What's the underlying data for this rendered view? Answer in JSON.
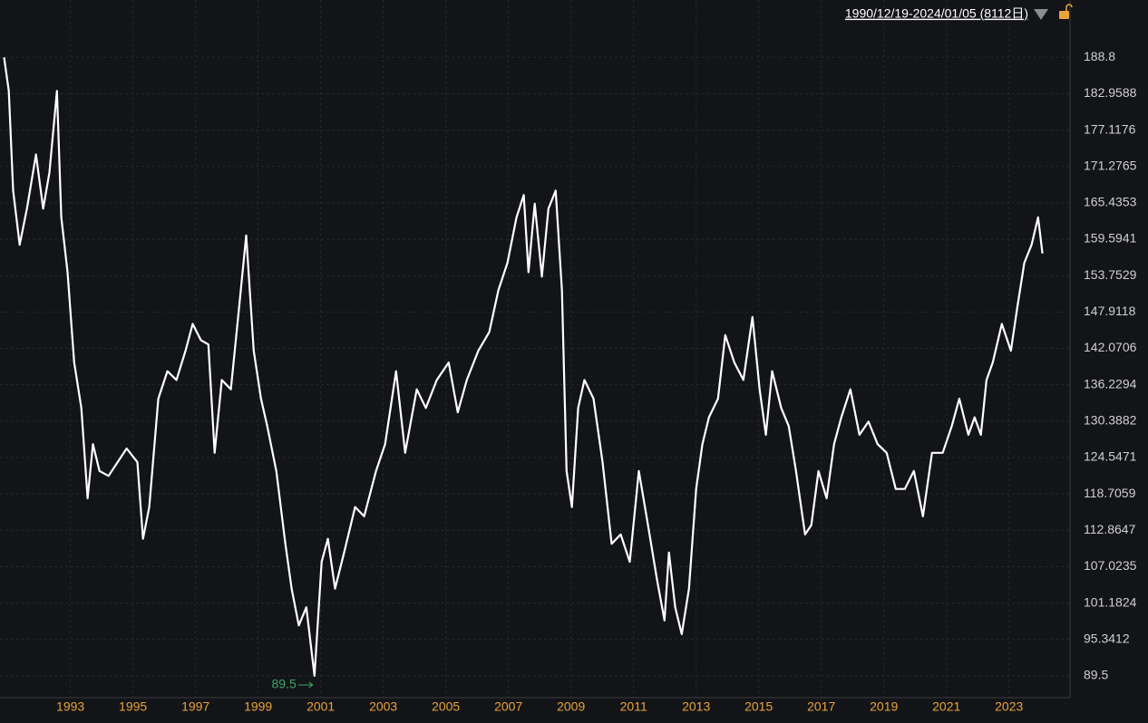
{
  "chart_data": {
    "type": "line",
    "range_label": "1990/12/19-2024/01/05 (8112日)",
    "annotations": [
      "89.5"
    ],
    "color": "#ffffff",
    "grid": true,
    "x": [
      1990.88,
      1991.03,
      1991.17,
      1991.38,
      1991.61,
      1991.9,
      1992.13,
      1992.33,
      1992.57,
      1992.71,
      1992.91,
      1993.12,
      1993.35,
      1993.55,
      1993.72,
      1993.93,
      1994.22,
      1994.51,
      1994.8,
      1995.14,
      1995.32,
      1995.52,
      1995.81,
      1996.1,
      1996.39,
      1996.68,
      1996.91,
      1997.17,
      1997.41,
      1997.61,
      1997.84,
      1998.13,
      1998.42,
      1998.62,
      1998.86,
      1999.09,
      1999.29,
      1999.58,
      1999.87,
      2000.07,
      2000.3,
      2000.54,
      2000.8,
      2001.03,
      2001.23,
      2001.46,
      2001.75,
      2002.1,
      2002.39,
      2002.77,
      2003.06,
      2003.41,
      2003.7,
      2004.07,
      2004.36,
      2004.71,
      2005.09,
      2005.38,
      2005.67,
      2006.04,
      2006.39,
      2006.68,
      2006.97,
      2007.26,
      2007.49,
      2007.64,
      2007.84,
      2008.07,
      2008.28,
      2008.51,
      2008.71,
      2008.86,
      2009.03,
      2009.23,
      2009.43,
      2009.72,
      2010.01,
      2010.3,
      2010.59,
      2010.88,
      2011.17,
      2011.46,
      2011.75,
      2011.99,
      2012.13,
      2012.33,
      2012.54,
      2012.77,
      2013.0,
      2013.2,
      2013.41,
      2013.7,
      2013.93,
      2014.22,
      2014.51,
      2014.8,
      2015.03,
      2015.23,
      2015.43,
      2015.72,
      2015.96,
      2016.19,
      2016.48,
      2016.68,
      2016.91,
      2017.17,
      2017.41,
      2017.64,
      2017.93,
      2018.22,
      2018.51,
      2018.8,
      2019.09,
      2019.38,
      2019.67,
      2019.96,
      2020.25,
      2020.54,
      2020.88,
      2021.17,
      2021.41,
      2021.7,
      2021.9,
      2022.1,
      2022.28,
      2022.48,
      2022.77,
      2023.06,
      2023.26,
      2023.49,
      2023.72,
      2023.93,
      2024.07
    ],
    "values": [
      188.8,
      183.4,
      167.4,
      158.7,
      164.5,
      173.2,
      164.5,
      170.3,
      183.4,
      163.1,
      154.3,
      139.8,
      132.5,
      118.0,
      126.7,
      122.4,
      121.6,
      123.8,
      126.0,
      123.8,
      111.5,
      116.6,
      134.0,
      138.4,
      137.0,
      141.7,
      146.0,
      143.4,
      142.7,
      125.3,
      137.0,
      135.5,
      150.0,
      160.2,
      141.7,
      134.0,
      129.6,
      122.4,
      110.7,
      103.5,
      97.6,
      100.5,
      89.5,
      107.8,
      111.5,
      103.5,
      109.3,
      116.6,
      115.1,
      122.4,
      126.7,
      138.4,
      125.3,
      135.5,
      132.5,
      137.0,
      139.8,
      131.8,
      137.0,
      141.7,
      144.7,
      151.4,
      155.8,
      163.1,
      166.7,
      154.3,
      165.3,
      153.6,
      164.5,
      167.4,
      151.4,
      122.4,
      116.6,
      132.5,
      137.0,
      134.0,
      123.8,
      110.7,
      112.2,
      107.8,
      122.4,
      113.7,
      104.9,
      98.4,
      109.3,
      100.5,
      96.2,
      103.5,
      119.5,
      126.7,
      131.0,
      134.0,
      144.2,
      139.8,
      137.0,
      147.1,
      135.5,
      128.2,
      138.4,
      132.5,
      129.6,
      122.4,
      112.2,
      113.7,
      122.4,
      118.0,
      126.7,
      131.0,
      135.5,
      128.2,
      130.3,
      126.7,
      125.3,
      119.5,
      119.5,
      122.4,
      115.1,
      125.3,
      125.3,
      129.6,
      134.0,
      128.2,
      131.0,
      128.2,
      137.0,
      139.8,
      146.0,
      141.7,
      148.5,
      155.8,
      158.7,
      163.1,
      157.3
    ],
    "xlim": [
      1990.75,
      2024.95
    ],
    "xticks": [
      1993,
      1995,
      1997,
      1999,
      2001,
      2003,
      2005,
      2007,
      2009,
      2011,
      2013,
      2015,
      2017,
      2019,
      2021,
      2023
    ],
    "ylim": [
      86.0,
      198.0
    ],
    "yticks": [
      188.8,
      182.9588,
      177.1176,
      171.2765,
      165.4353,
      159.5941,
      153.7529,
      147.9118,
      142.0706,
      136.2294,
      130.3882,
      124.5471,
      118.7059,
      112.8647,
      107.0235,
      101.1824,
      95.3412,
      89.5
    ]
  }
}
